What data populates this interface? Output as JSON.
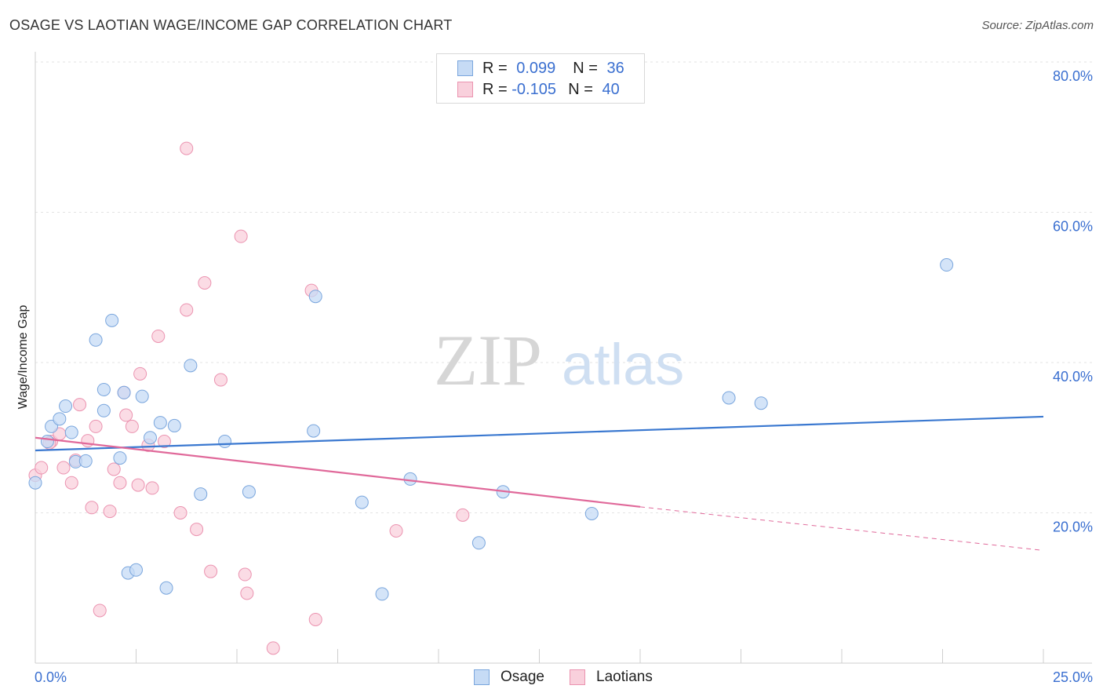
{
  "header": {
    "title": "OSAGE VS LAOTIAN WAGE/INCOME GAP CORRELATION CHART",
    "source": "Source: ZipAtlas.com"
  },
  "watermark": {
    "zip": "ZIP",
    "atlas": "atlas"
  },
  "legend": {
    "rows": [
      {
        "r_label": "R =",
        "r_value": "0.099",
        "n_label": "N =",
        "n_value": "36",
        "color": "#a8c8f0"
      },
      {
        "r_label": "R =",
        "r_value": "-0.105",
        "n_label": "N =",
        "n_value": "40",
        "color": "#f5b8cb"
      }
    ]
  },
  "bottom_legend": {
    "osage": "Osage",
    "laotians": "Laotians"
  },
  "colors": {
    "osage_fill": "#c6dbf5",
    "osage_stroke": "#7aa6dd",
    "osage_line": "#3a78d0",
    "laotian_fill": "#f9d0dc",
    "laotian_stroke": "#eb93b0",
    "laotian_line": "#e0699a",
    "tick_label": "#3a6fd0"
  },
  "chart_data": {
    "type": "scatter",
    "title": "OSAGE VS LAOTIAN WAGE/INCOME GAP CORRELATION CHART",
    "xlabel": "",
    "ylabel": "Wage/Income Gap",
    "xlim": [
      0,
      25
    ],
    "ylim": [
      0,
      80
    ],
    "x_tick_labels": [
      "0.0%",
      "25.0%"
    ],
    "y_ticks": [
      20,
      40,
      60,
      80
    ],
    "y_tick_labels": [
      "20.0%",
      "40.0%",
      "60.0%",
      "80.0%"
    ],
    "grid": "horizontal dashed",
    "legend_position": "top-center",
    "series": [
      {
        "name": "Osage",
        "r": 0.099,
        "n": 36,
        "points": [
          [
            0.0,
            24.0
          ],
          [
            0.3,
            29.5
          ],
          [
            0.4,
            31.5
          ],
          [
            0.6,
            32.5
          ],
          [
            0.75,
            34.2
          ],
          [
            0.9,
            30.7
          ],
          [
            1.0,
            26.8
          ],
          [
            1.25,
            26.9
          ],
          [
            1.5,
            43.0
          ],
          [
            1.7,
            36.4
          ],
          [
            1.7,
            33.6
          ],
          [
            1.9,
            45.6
          ],
          [
            2.1,
            27.3
          ],
          [
            2.2,
            36.0
          ],
          [
            2.3,
            12.0
          ],
          [
            2.5,
            12.4
          ],
          [
            2.65,
            35.5
          ],
          [
            2.85,
            30.0
          ],
          [
            3.1,
            32.0
          ],
          [
            3.25,
            10.0
          ],
          [
            3.45,
            31.6
          ],
          [
            3.85,
            39.6
          ],
          [
            4.1,
            22.5
          ],
          [
            4.7,
            29.5
          ],
          [
            5.3,
            22.8
          ],
          [
            6.9,
            30.9
          ],
          [
            6.95,
            48.8
          ],
          [
            8.1,
            21.4
          ],
          [
            8.6,
            9.2
          ],
          [
            9.3,
            24.5
          ],
          [
            11.0,
            16.0
          ],
          [
            11.6,
            22.8
          ],
          [
            13.8,
            19.9
          ],
          [
            17.2,
            35.3
          ],
          [
            18.0,
            34.6
          ],
          [
            22.6,
            53.0
          ]
        ]
      },
      {
        "name": "Laotians",
        "r": -0.105,
        "n": 40,
        "points": [
          [
            0.0,
            25.0
          ],
          [
            0.15,
            26.0
          ],
          [
            0.4,
            29.5
          ],
          [
            0.6,
            30.5
          ],
          [
            0.7,
            26.0
          ],
          [
            0.9,
            24.0
          ],
          [
            1.0,
            27.0
          ],
          [
            1.1,
            34.4
          ],
          [
            1.3,
            29.6
          ],
          [
            1.4,
            20.7
          ],
          [
            1.5,
            31.5
          ],
          [
            1.6,
            7.0
          ],
          [
            1.85,
            20.2
          ],
          [
            1.95,
            25.8
          ],
          [
            2.1,
            24.0
          ],
          [
            2.2,
            36.0
          ],
          [
            2.25,
            33.0
          ],
          [
            2.4,
            31.5
          ],
          [
            2.55,
            23.7
          ],
          [
            2.6,
            38.5
          ],
          [
            2.8,
            29.0
          ],
          [
            2.9,
            23.3
          ],
          [
            3.05,
            43.5
          ],
          [
            3.2,
            29.5
          ],
          [
            3.6,
            20.0
          ],
          [
            3.75,
            47.0
          ],
          [
            3.75,
            68.5
          ],
          [
            4.0,
            17.8
          ],
          [
            4.2,
            50.6
          ],
          [
            4.35,
            12.2
          ],
          [
            4.6,
            37.7
          ],
          [
            5.1,
            56.8
          ],
          [
            5.2,
            11.8
          ],
          [
            5.25,
            9.3
          ],
          [
            5.9,
            2.0
          ],
          [
            6.85,
            49.6
          ],
          [
            6.95,
            5.8
          ],
          [
            8.95,
            17.6
          ],
          [
            10.6,
            19.7
          ],
          [
            0.35,
            29.3
          ]
        ]
      }
    ],
    "trend_lines": [
      {
        "name": "Osage",
        "from": [
          0,
          28.3
        ],
        "to": [
          25,
          32.8
        ],
        "style": "solid"
      },
      {
        "name": "Laotians",
        "from": [
          0,
          30.0
        ],
        "to": [
          15,
          20.8
        ],
        "style": "solid"
      },
      {
        "name": "Laotians",
        "from": [
          15,
          20.8
        ],
        "to": [
          25,
          15.0
        ],
        "style": "dashed"
      }
    ]
  }
}
